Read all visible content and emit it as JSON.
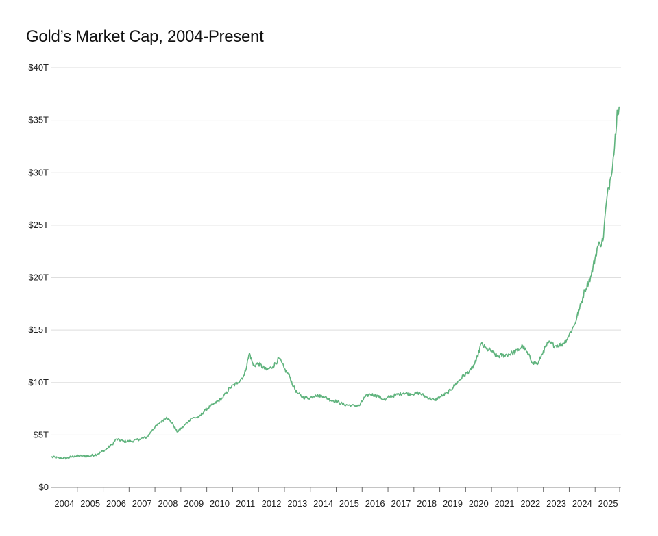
{
  "chart_data": {
    "type": "line",
    "title": "Gold’s Market Cap, 2004-Present",
    "xlabel": "",
    "ylabel": "",
    "ylim": [
      0,
      40
    ],
    "y_ticks": [
      0,
      5,
      10,
      15,
      20,
      25,
      30,
      35,
      40
    ],
    "y_tick_labels": [
      "$0",
      "$5T",
      "$10T",
      "$15T",
      "$20T",
      "$25T",
      "$30T",
      "$35T",
      "$40T"
    ],
    "x_tick_labels": [
      "2004",
      "2005",
      "2006",
      "2007",
      "2008",
      "2009",
      "2010",
      "2011",
      "2012",
      "2013",
      "2014",
      "2015",
      "2016",
      "2017",
      "2018",
      "2019",
      "2020",
      "2021",
      "2022",
      "2023",
      "2024",
      "2025"
    ],
    "xlim": [
      2004.0,
      2026.0
    ],
    "grid": true,
    "series": [
      {
        "name": "Gold market cap ($T)",
        "color": "#5fb37d",
        "x": [
          2004.0,
          2004.3,
          2004.6,
          2004.9,
          2005.2,
          2005.5,
          2005.8,
          2006.1,
          2006.35,
          2006.5,
          2006.8,
          2007.1,
          2007.4,
          2007.7,
          2007.9,
          2008.2,
          2008.45,
          2008.7,
          2008.85,
          2009.1,
          2009.4,
          2009.7,
          2009.95,
          2010.3,
          2010.6,
          2010.9,
          2011.2,
          2011.45,
          2011.65,
          2011.8,
          2012.0,
          2012.3,
          2012.55,
          2012.8,
          2013.0,
          2013.2,
          2013.35,
          2013.5,
          2013.7,
          2013.95,
          2014.2,
          2014.5,
          2014.8,
          2015.0,
          2015.3,
          2015.6,
          2015.9,
          2016.1,
          2016.3,
          2016.6,
          2016.9,
          2017.0,
          2017.3,
          2017.6,
          2017.9,
          2018.2,
          2018.5,
          2018.8,
          2019.0,
          2019.3,
          2019.6,
          2019.9,
          2020.2,
          2020.4,
          2020.6,
          2020.8,
          2021.0,
          2021.2,
          2021.5,
          2021.8,
          2022.0,
          2022.2,
          2022.4,
          2022.6,
          2022.8,
          2023.0,
          2023.2,
          2023.45,
          2023.7,
          2023.9,
          2024.2,
          2024.4,
          2024.6,
          2024.85,
          2025.1,
          2025.3,
          2025.45,
          2025.6,
          2025.75,
          2025.85,
          2025.95
        ],
        "values": [
          2.9,
          2.8,
          2.8,
          3.0,
          3.0,
          3.0,
          3.2,
          3.6,
          4.1,
          4.6,
          4.4,
          4.4,
          4.6,
          4.8,
          5.5,
          6.2,
          6.7,
          6.0,
          5.3,
          5.8,
          6.6,
          6.7,
          7.4,
          8.0,
          8.5,
          9.5,
          10.0,
          10.7,
          12.8,
          11.6,
          11.8,
          11.2,
          11.5,
          12.3,
          11.3,
          10.6,
          9.6,
          9.0,
          8.6,
          8.5,
          8.8,
          8.7,
          8.3,
          8.2,
          7.9,
          7.8,
          7.8,
          8.6,
          8.9,
          8.7,
          8.3,
          8.6,
          8.8,
          9.0,
          8.9,
          9.0,
          8.6,
          8.3,
          8.6,
          9.0,
          9.8,
          10.6,
          11.2,
          12.0,
          13.7,
          13.2,
          13.0,
          12.5,
          12.6,
          12.8,
          13.0,
          13.5,
          12.7,
          11.9,
          11.8,
          13.0,
          13.8,
          13.5,
          13.6,
          14.1,
          15.5,
          17.0,
          18.8,
          20.2,
          23.0,
          23.5,
          27.5,
          29.6,
          32.5,
          36.0,
          36.2
        ]
      }
    ]
  }
}
